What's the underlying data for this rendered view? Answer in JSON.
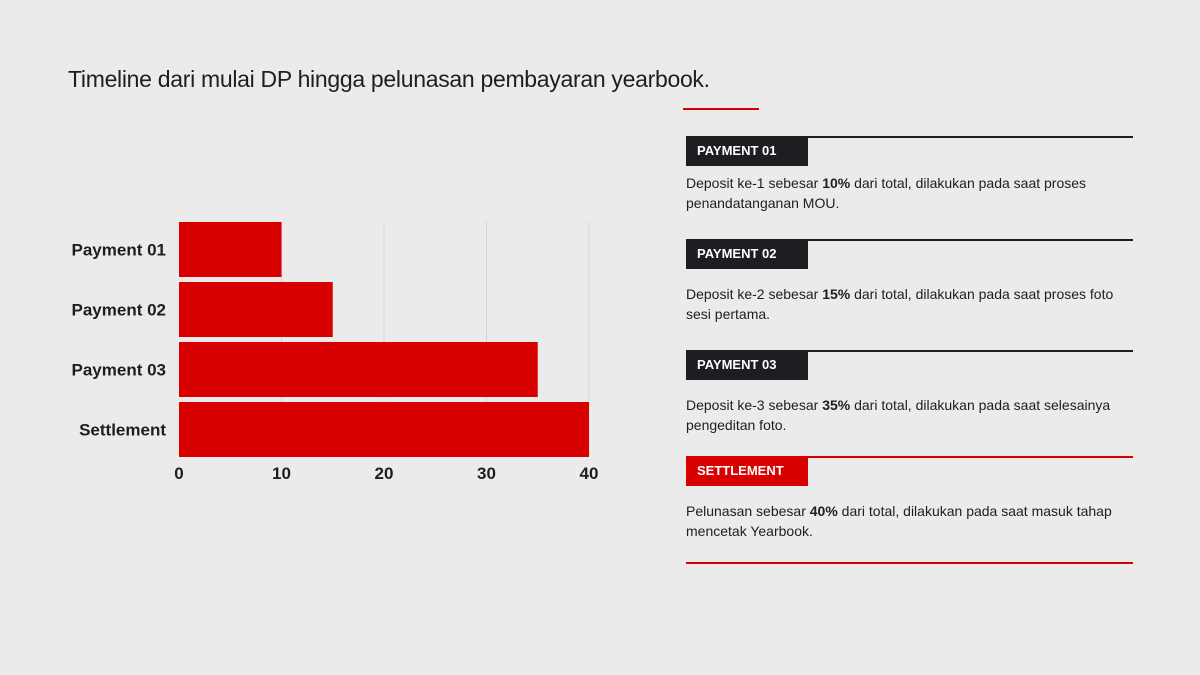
{
  "title": "Timeline dari mulai DP hingga pelunasan pembayaran yearbook.",
  "colors": {
    "accent": "#d90000",
    "dark": "#1e1e22",
    "background": "#ebebeb",
    "grid": "#d4d4d4"
  },
  "chart_data": {
    "type": "bar",
    "orientation": "horizontal",
    "categories": [
      "Payment 01",
      "Payment 02",
      "Payment 03",
      "Settlement"
    ],
    "values": [
      10,
      15,
      35,
      40
    ],
    "xlim": [
      0,
      40
    ],
    "xticks": [
      "0",
      "10",
      "20",
      "30",
      "40"
    ],
    "grid": true,
    "bar_color": "#d90000",
    "title": "",
    "xlabel": "",
    "ylabel": ""
  },
  "sections": [
    {
      "tag": "PAYMENT 01",
      "tag_color": "#1e1e22",
      "desc_pre": "Deposit ke-1 sebesar ",
      "desc_bold": "10%",
      "desc_post": " dari total, dilakukan pada saat proses penandatanganan MOU."
    },
    {
      "tag": "PAYMENT 02",
      "tag_color": "#1e1e22",
      "desc_pre": "Deposit ke-2 sebesar ",
      "desc_bold": "15%",
      "desc_post": " dari total, dilakukan pada saat proses foto sesi pertama."
    },
    {
      "tag": "PAYMENT 03",
      "tag_color": "#1e1e22",
      "desc_pre": "Deposit ke-3 sebesar ",
      "desc_bold": "35%",
      "desc_post": " dari total, dilakukan pada saat selesainya pengeditan foto."
    },
    {
      "tag": "SETTLEMENT",
      "tag_color": "#d90000",
      "desc_pre": "Pelunasan sebesar ",
      "desc_bold": "40%",
      "desc_post": " dari total, dilakukan pada saat masuk tahap mencetak Yearbook."
    }
  ]
}
